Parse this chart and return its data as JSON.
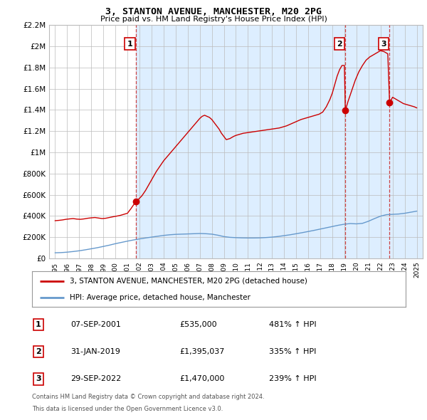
{
  "title": "3, STANTON AVENUE, MANCHESTER, M20 2PG",
  "subtitle": "Price paid vs. HM Land Registry's House Price Index (HPI)",
  "ylim": [
    0,
    2200000
  ],
  "yticks": [
    0,
    200000,
    400000,
    600000,
    800000,
    1000000,
    1200000,
    1400000,
    1600000,
    1800000,
    2000000,
    2200000
  ],
  "ytick_labels": [
    "£0",
    "£200K",
    "£400K",
    "£600K",
    "£800K",
    "£1M",
    "£1.2M",
    "£1.4M",
    "£1.6M",
    "£1.8M",
    "£2M",
    "£2.2M"
  ],
  "xlim_start": 1994.5,
  "xlim_end": 2025.5,
  "legend_line1": "3, STANTON AVENUE, MANCHESTER, M20 2PG (detached house)",
  "legend_line2": "HPI: Average price, detached house, Manchester",
  "sale1_date": "07-SEP-2001",
  "sale1_price": "£535,000",
  "sale1_pct": "481% ↑ HPI",
  "sale1_x": 2001.69,
  "sale1_y": 535000,
  "sale2_date": "31-JAN-2019",
  "sale2_price": "£1,395,037",
  "sale2_pct": "335% ↑ HPI",
  "sale2_x": 2019.08,
  "sale2_y": 1395037,
  "sale3_date": "29-SEP-2022",
  "sale3_price": "£1,470,000",
  "sale3_pct": "239% ↑ HPI",
  "sale3_x": 2022.75,
  "sale3_y": 1470000,
  "footer1": "Contains HM Land Registry data © Crown copyright and database right 2024.",
  "footer2": "This data is licensed under the Open Government Licence v3.0.",
  "red_color": "#cc0000",
  "blue_color": "#6699cc",
  "grid_color": "#bbbbbb",
  "bg_color": "#ffffff",
  "chart_bg_shaded": "#ddeeff",
  "vline_color": "#cc4444"
}
